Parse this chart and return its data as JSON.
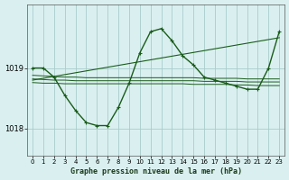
{
  "bg_color": "#daf0f0",
  "grid_color": "#aacccc",
  "line_color": "#1a5c1a",
  "title": "Graphe pression niveau de la mer (hPa)",
  "xlim": [
    -0.5,
    23.5
  ],
  "ylim": [
    1017.55,
    1020.05
  ],
  "yticks": [
    1018,
    1019
  ],
  "xticks": [
    0,
    1,
    2,
    3,
    4,
    5,
    6,
    7,
    8,
    9,
    10,
    11,
    12,
    13,
    14,
    15,
    16,
    17,
    18,
    19,
    20,
    21,
    22,
    23
  ],
  "series": [
    {
      "x": [
        0,
        1,
        2,
        3,
        4,
        5,
        6,
        7,
        8,
        9,
        10,
        11,
        12,
        13,
        14,
        15,
        16,
        17,
        18,
        19,
        20,
        21,
        22,
        23
      ],
      "y": [
        1019.0,
        1019.0,
        1018.85,
        1018.55,
        1018.3,
        1018.1,
        1018.05,
        1018.05,
        1018.35,
        1018.75,
        1019.25,
        1019.6,
        1019.65,
        1019.45,
        1019.2,
        1019.05,
        1018.85,
        1018.8,
        1018.75,
        1018.7,
        1018.65,
        1018.65,
        1019.0,
        1019.6
      ],
      "with_markers": true,
      "lw": 1.0
    },
    {
      "x": [
        0,
        23
      ],
      "y": [
        1018.8,
        1019.5
      ],
      "with_markers": false,
      "lw": 0.8
    },
    {
      "x": [
        0,
        1,
        2,
        3,
        4,
        5,
        6,
        7,
        8,
        9,
        10,
        11,
        12,
        13,
        14,
        15,
        16,
        17,
        18,
        19,
        20,
        21,
        22,
        23
      ],
      "y": [
        1018.88,
        1018.87,
        1018.86,
        1018.85,
        1018.85,
        1018.84,
        1018.84,
        1018.84,
        1018.84,
        1018.84,
        1018.84,
        1018.84,
        1018.84,
        1018.84,
        1018.84,
        1018.84,
        1018.83,
        1018.83,
        1018.83,
        1018.83,
        1018.82,
        1018.82,
        1018.82,
        1018.82
      ],
      "with_markers": false,
      "lw": 0.7
    },
    {
      "x": [
        0,
        1,
        2,
        3,
        4,
        5,
        6,
        7,
        8,
        9,
        10,
        11,
        12,
        13,
        14,
        15,
        16,
        17,
        18,
        19,
        20,
        21,
        22,
        23
      ],
      "y": [
        1018.82,
        1018.81,
        1018.8,
        1018.8,
        1018.79,
        1018.79,
        1018.79,
        1018.79,
        1018.79,
        1018.79,
        1018.79,
        1018.79,
        1018.79,
        1018.79,
        1018.79,
        1018.79,
        1018.78,
        1018.78,
        1018.78,
        1018.78,
        1018.77,
        1018.77,
        1018.77,
        1018.77
      ],
      "with_markers": false,
      "lw": 0.7
    },
    {
      "x": [
        0,
        1,
        2,
        3,
        4,
        5,
        6,
        7,
        8,
        9,
        10,
        11,
        12,
        13,
        14,
        15,
        16,
        17,
        18,
        19,
        20,
        21,
        22,
        23
      ],
      "y": [
        1018.76,
        1018.75,
        1018.75,
        1018.74,
        1018.74,
        1018.74,
        1018.74,
        1018.74,
        1018.74,
        1018.74,
        1018.74,
        1018.74,
        1018.74,
        1018.74,
        1018.74,
        1018.73,
        1018.73,
        1018.73,
        1018.73,
        1018.72,
        1018.72,
        1018.71,
        1018.71,
        1018.71
      ],
      "with_markers": false,
      "lw": 0.7
    }
  ]
}
